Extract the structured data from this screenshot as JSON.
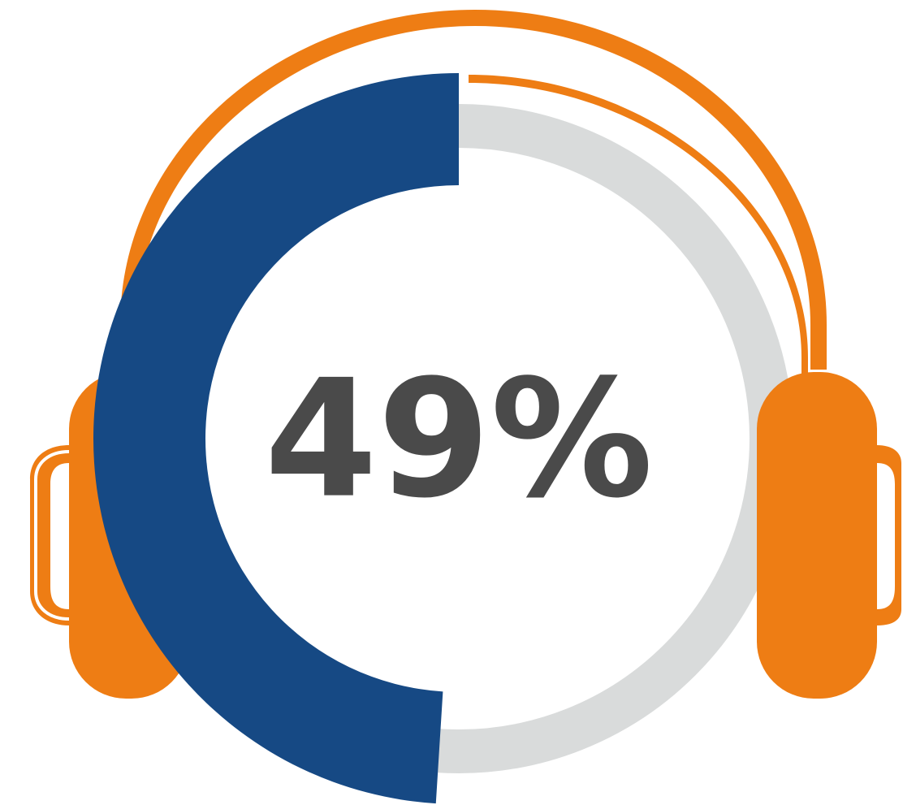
{
  "chart_data": {
    "type": "donut",
    "values": [
      49
    ],
    "value_labels": [
      "49%"
    ],
    "ylim": [
      0,
      100
    ],
    "color": "#164984",
    "track_color": "#d9dbdb"
  }
}
